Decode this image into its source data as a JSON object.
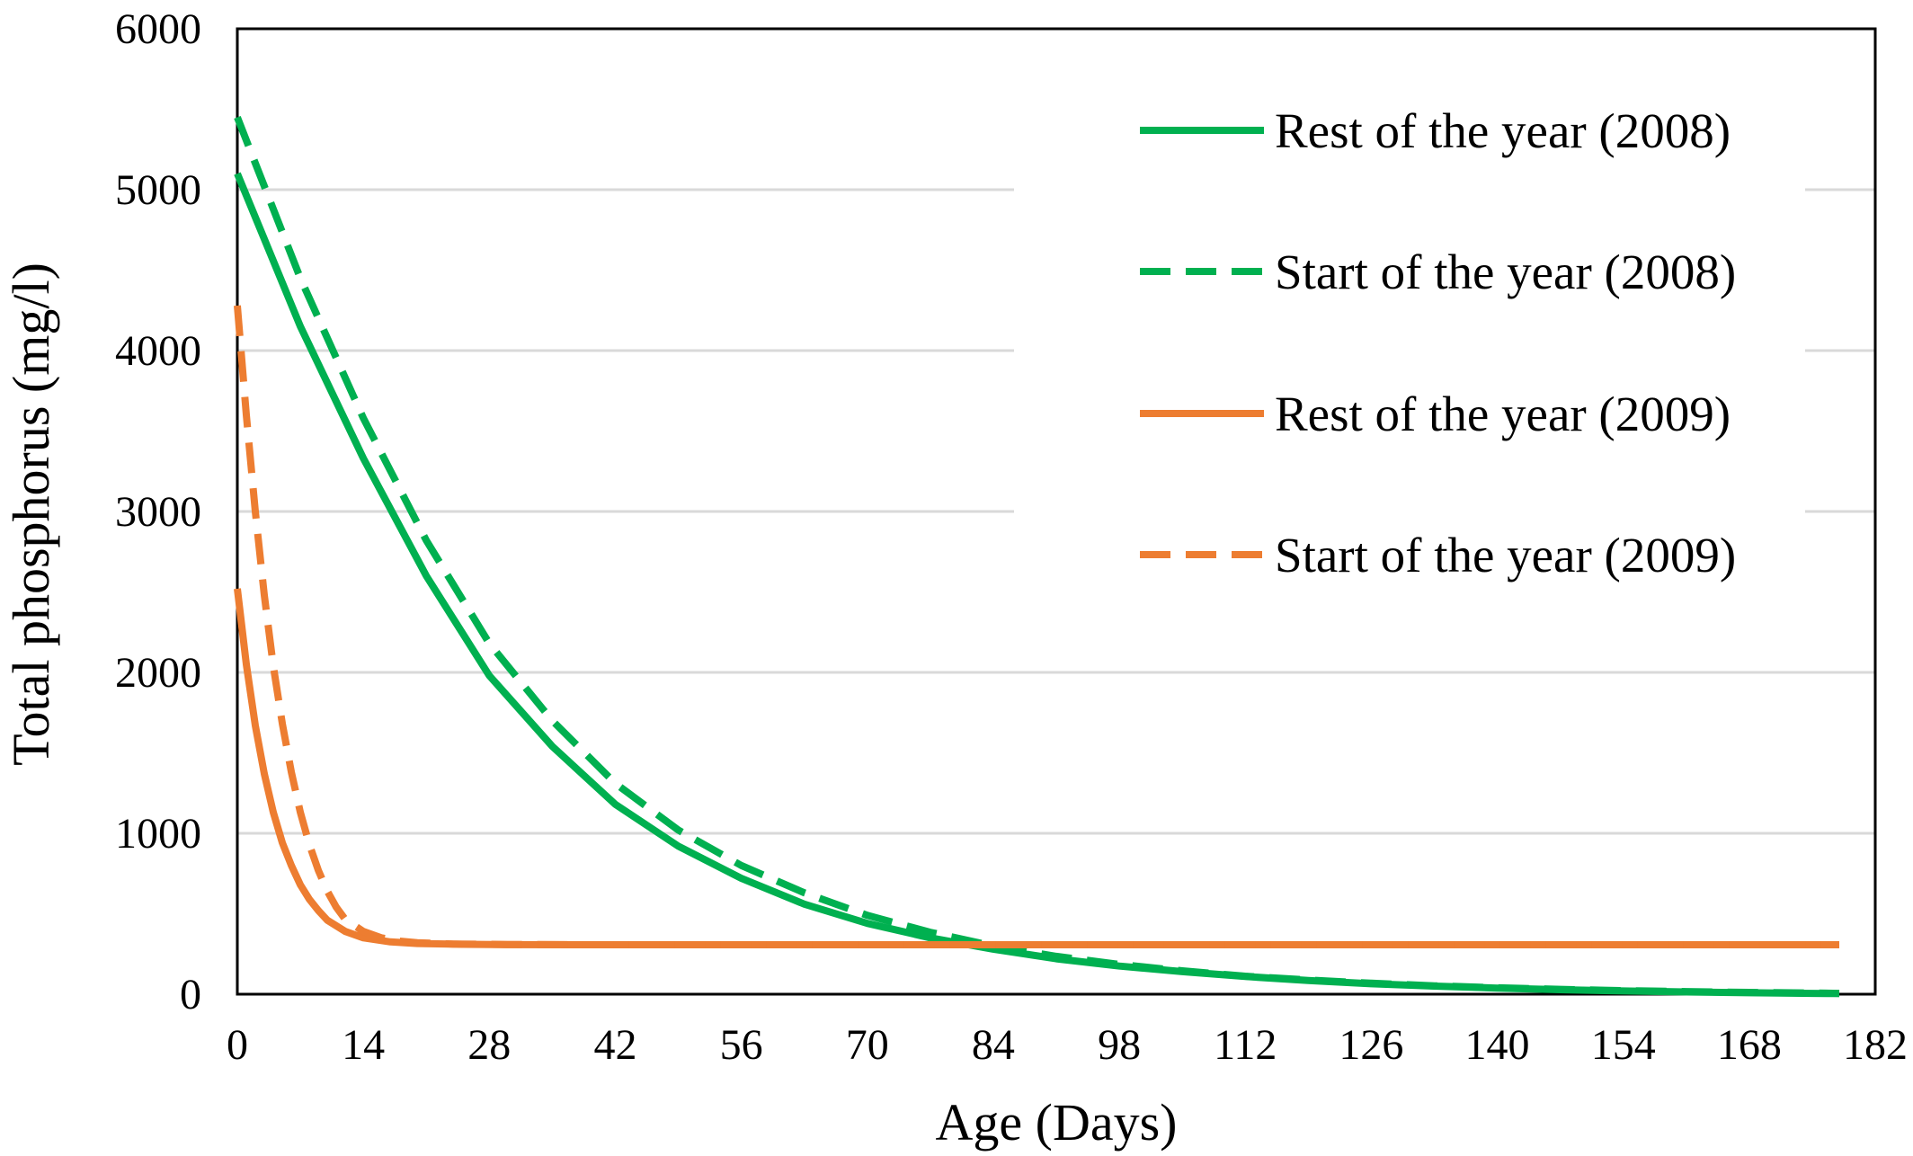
{
  "chart_data": {
    "type": "line",
    "title": "",
    "xlabel": "Age (Days)",
    "ylabel": "Total phosphorus (mg/l)",
    "xlim": [
      0,
      182
    ],
    "ylim": [
      0,
      6000
    ],
    "x_ticks": [
      0,
      14,
      28,
      42,
      56,
      70,
      84,
      98,
      112,
      126,
      140,
      154,
      168,
      182
    ],
    "y_ticks": [
      0,
      1000,
      2000,
      3000,
      4000,
      5000,
      6000
    ],
    "grid": "horizontal",
    "legend_position": "top-right",
    "series": [
      {
        "name": "Rest of the year (2008)",
        "color": "#00b050",
        "style": "solid",
        "points": [
          [
            0,
            5100
          ],
          [
            7,
            4150
          ],
          [
            14,
            3330
          ],
          [
            21,
            2600
          ],
          [
            28,
            1980
          ],
          [
            35,
            1540
          ],
          [
            42,
            1180
          ],
          [
            49,
            920
          ],
          [
            56,
            720
          ],
          [
            63,
            560
          ],
          [
            70,
            440
          ],
          [
            77,
            350
          ],
          [
            84,
            280
          ],
          [
            91,
            220
          ],
          [
            98,
            175
          ],
          [
            105,
            140
          ],
          [
            112,
            110
          ],
          [
            119,
            85
          ],
          [
            126,
            65
          ],
          [
            133,
            50
          ],
          [
            140,
            38
          ],
          [
            147,
            28
          ],
          [
            154,
            20
          ],
          [
            161,
            14
          ],
          [
            168,
            9
          ],
          [
            175,
            5
          ],
          [
            178,
            4
          ]
        ]
      },
      {
        "name": "Start of the year (2008)",
        "color": "#00b050",
        "style": "dashed",
        "points": [
          [
            0,
            5450
          ],
          [
            7,
            4450
          ],
          [
            14,
            3580
          ],
          [
            21,
            2820
          ],
          [
            28,
            2180
          ],
          [
            35,
            1700
          ],
          [
            42,
            1310
          ],
          [
            49,
            1020
          ],
          [
            56,
            800
          ],
          [
            63,
            630
          ],
          [
            70,
            490
          ],
          [
            77,
            385
          ],
          [
            84,
            300
          ],
          [
            91,
            235
          ],
          [
            98,
            185
          ],
          [
            105,
            145
          ],
          [
            112,
            112
          ],
          [
            119,
            88
          ],
          [
            126,
            68
          ],
          [
            133,
            52
          ],
          [
            140,
            40
          ],
          [
            147,
            30
          ],
          [
            154,
            22
          ],
          [
            161,
            16
          ],
          [
            168,
            11
          ],
          [
            175,
            7
          ],
          [
            178,
            5
          ]
        ]
      },
      {
        "name": "Rest of the year (2009)",
        "color": "#ed7d31",
        "style": "solid",
        "points": [
          [
            0,
            2520
          ],
          [
            1,
            2050
          ],
          [
            2,
            1670
          ],
          [
            3,
            1370
          ],
          [
            4,
            1130
          ],
          [
            5,
            940
          ],
          [
            6,
            800
          ],
          [
            7,
            680
          ],
          [
            8,
            590
          ],
          [
            9,
            520
          ],
          [
            10,
            460
          ],
          [
            12,
            390
          ],
          [
            14,
            350
          ],
          [
            17,
            325
          ],
          [
            20,
            315
          ],
          [
            25,
            310
          ],
          [
            30,
            308
          ],
          [
            40,
            307
          ],
          [
            60,
            307
          ],
          [
            90,
            307
          ],
          [
            120,
            307
          ],
          [
            150,
            307
          ],
          [
            178,
            307
          ]
        ]
      },
      {
        "name": "Start of the year (2009)",
        "color": "#ed7d31",
        "style": "dashed",
        "points": [
          [
            0,
            4280
          ],
          [
            1,
            3600
          ],
          [
            2,
            3000
          ],
          [
            3,
            2480
          ],
          [
            4,
            2040
          ],
          [
            5,
            1680
          ],
          [
            6,
            1380
          ],
          [
            7,
            1130
          ],
          [
            8,
            930
          ],
          [
            9,
            770
          ],
          [
            10,
            640
          ],
          [
            11,
            540
          ],
          [
            12,
            465
          ],
          [
            14,
            390
          ],
          [
            16,
            350
          ],
          [
            18,
            330
          ],
          [
            20,
            320
          ],
          [
            24,
            312
          ],
          [
            30,
            309
          ],
          [
            40,
            307
          ],
          [
            60,
            307
          ],
          [
            90,
            307
          ],
          [
            120,
            307
          ],
          [
            150,
            307
          ],
          [
            178,
            307
          ]
        ]
      }
    ]
  }
}
